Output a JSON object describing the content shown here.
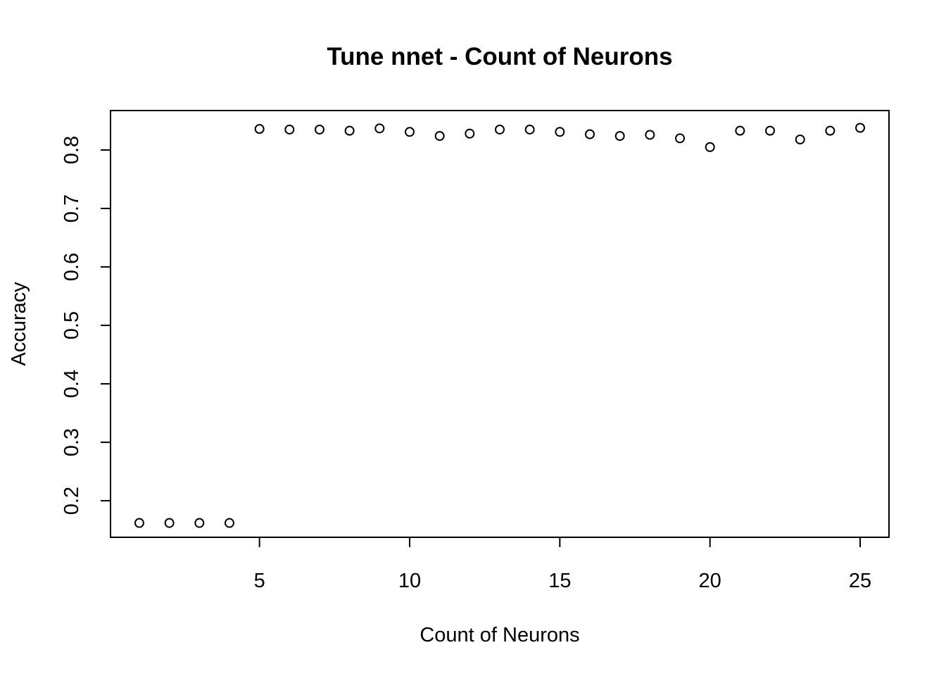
{
  "chart_data": {
    "type": "scatter",
    "title": "Tune nnet - Count of Neurons",
    "xlabel": "Count of Neurons",
    "ylabel": "Accuracy",
    "xlim": [
      0.04,
      25.96
    ],
    "ylim": [
      0.1375,
      0.8675
    ],
    "x_ticks": [
      5,
      10,
      15,
      20,
      25
    ],
    "y_ticks": [
      0.2,
      0.3,
      0.4,
      0.5,
      0.6,
      0.7,
      0.8
    ],
    "x": [
      1,
      2,
      3,
      4,
      5,
      6,
      7,
      8,
      9,
      10,
      11,
      12,
      13,
      14,
      15,
      16,
      17,
      18,
      19,
      20,
      21,
      22,
      23,
      24,
      25
    ],
    "y": [
      0.162,
      0.162,
      0.162,
      0.162,
      0.836,
      0.835,
      0.835,
      0.833,
      0.837,
      0.831,
      0.824,
      0.828,
      0.835,
      0.835,
      0.831,
      0.827,
      0.824,
      0.826,
      0.82,
      0.805,
      0.833,
      0.833,
      0.818,
      0.833,
      0.838
    ],
    "marker": "open-circle",
    "grid": false,
    "colors": {
      "points": "#000000",
      "background": "#ffffff"
    }
  }
}
